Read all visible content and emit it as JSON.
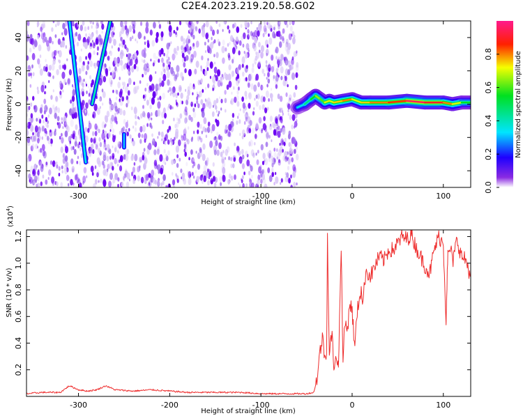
{
  "title": "C2E4.2023.219.20.58.G02",
  "colors": {
    "scatter": "#6a00f2",
    "snr_line": "#ee2c2c",
    "frame": "#000000",
    "background": "#ffffff"
  },
  "chart_data": [
    {
      "type": "heatmap",
      "xlabel": "Height of straight line (km)",
      "ylabel": "Frequency (Hz)",
      "xlim": [
        -357,
        130
      ],
      "ylim": [
        -50,
        50
      ],
      "x_ticks": [
        -300,
        -200,
        -100,
        0,
        100
      ],
      "x_tick_labels": [
        "-300",
        "-200",
        "-100",
        "0",
        "100"
      ],
      "y_ticks": [
        -40,
        -20,
        0,
        20,
        40
      ],
      "y_tick_labels": [
        "-40",
        "-20",
        "0",
        "20",
        "40"
      ],
      "grid": false,
      "scatter_region_x": [
        -357,
        -60
      ],
      "tracks": [
        {
          "x": [
            -310,
            -292
          ],
          "y": [
            50,
            -35
          ],
          "amplitude": 0.35
        },
        {
          "x": [
            -265,
            -285
          ],
          "y": [
            50,
            0
          ],
          "amplitude": 0.4
        },
        {
          "x": [
            -250,
            -250
          ],
          "y": [
            -18,
            -26
          ],
          "amplitude": 0.3
        }
      ],
      "signal": {
        "x": [
          -60,
          -52,
          -45,
          -40,
          -35,
          -30,
          -25,
          -20,
          -10,
          0,
          10,
          20,
          40,
          60,
          80,
          100,
          110,
          120,
          130
        ],
        "y": [
          -2,
          0,
          3,
          5,
          3,
          1,
          2,
          1,
          2,
          3,
          1,
          1,
          1,
          2,
          1,
          1,
          0,
          1,
          1
        ],
        "amplitude": [
          0.35,
          0.45,
          0.55,
          0.65,
          0.6,
          0.7,
          0.7,
          0.75,
          0.8,
          0.7,
          0.75,
          0.8,
          0.85,
          0.95,
          0.9,
          0.8,
          0.7,
          0.55,
          0.5
        ]
      },
      "colorbar": {
        "label": "Normalized spectral amplitude",
        "range": [
          0,
          1
        ],
        "ticks": [
          0.0,
          0.2,
          0.4,
          0.6,
          0.8
        ],
        "tick_labels": [
          "0.0",
          "0.2",
          "0.4",
          "0.6",
          "0.8"
        ]
      }
    },
    {
      "type": "line",
      "xlabel": "Height of straight line (km)",
      "ylabel": "SNR (10 * v/v)",
      "y_multiplier": "(x10",
      "y_multiplier_exp": "4",
      "y_multiplier_close": ")",
      "xlim": [
        -357,
        130
      ],
      "ylim": [
        0,
        1.25
      ],
      "x_ticks": [
        -300,
        -200,
        -100,
        0,
        100
      ],
      "x_tick_labels": [
        "-300",
        "-200",
        "-100",
        "0",
        "100"
      ],
      "y_ticks": [
        0.2,
        0.4,
        0.6,
        0.8,
        1.0,
        1.2
      ],
      "y_tick_labels": [
        "0.2",
        "0.4",
        "0.6",
        "0.8",
        "1.0",
        "1.2"
      ],
      "grid": false,
      "series": [
        {
          "x": [
            -357,
            -340,
            -320,
            -310,
            -300,
            -290,
            -280,
            -270,
            -260,
            -240,
            -220,
            -200,
            -180,
            -150,
            -120,
            -100,
            -80,
            -60,
            -50,
            -42,
            -38,
            -35,
            -32,
            -30,
            -28,
            -27,
            -25,
            -22,
            -20,
            -18,
            -15,
            -12,
            -10,
            -8,
            -5,
            -3,
            0,
            3,
            5,
            8,
            10,
            12,
            15,
            20,
            25,
            30,
            35,
            40,
            45,
            50,
            55,
            60,
            65,
            70,
            75,
            80,
            85,
            90,
            95,
            100,
            103,
            104,
            105,
            108,
            110,
            115,
            120,
            125,
            130
          ],
          "y": [
            0.02,
            0.03,
            0.03,
            0.08,
            0.05,
            0.04,
            0.05,
            0.08,
            0.05,
            0.04,
            0.05,
            0.04,
            0.03,
            0.03,
            0.03,
            0.02,
            0.02,
            0.02,
            0.02,
            0.03,
            0.15,
            0.35,
            0.45,
            0.28,
            0.35,
            1.2,
            0.3,
            0.5,
            0.15,
            0.35,
            0.2,
            1.15,
            0.25,
            0.55,
            0.5,
            0.7,
            0.65,
            0.35,
            0.6,
            0.75,
            0.8,
            0.7,
            0.95,
            0.9,
            0.98,
            1.05,
            1.02,
            1.1,
            1.1,
            1.15,
            1.2,
            1.18,
            1.22,
            1.12,
            1.05,
            0.98,
            0.92,
            1.1,
            1.2,
            1.15,
            0.58,
            0.85,
            1.05,
            1.12,
            1.0,
            1.18,
            1.05,
            1.02,
            0.9
          ]
        }
      ]
    }
  ]
}
